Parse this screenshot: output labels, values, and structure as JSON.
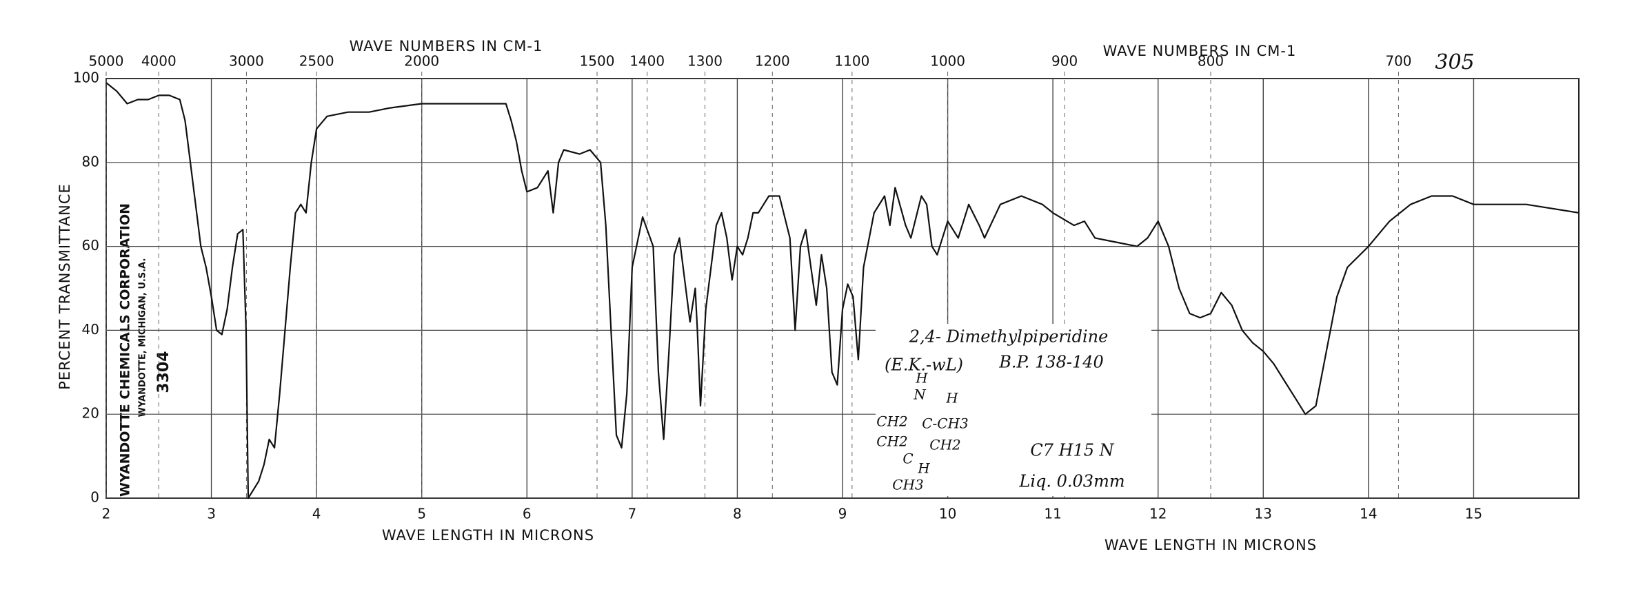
{
  "chart_data": {
    "type": "line",
    "xlabel": "WAVE LENGTH IN MICRONS",
    "x2label": "WAVE NUMBERS IN CM-1",
    "ylabel": "PERCENT TRANSMITTANCE",
    "page_number": "305",
    "company": "WYANDOTTE CHEMICALS CORPORATION",
    "address": "WYANDOTTE, MICHIGAN, U.S.A.",
    "serial": "3304",
    "annotations": [
      "2,4- Dimethylpiperidine",
      "(E.K.-wL)",
      "B.P. 138-140",
      "C7 H15 N",
      "Liq. 0.03mm",
      "H",
      "N",
      "H",
      "CH2",
      "C-CH3",
      "CH2",
      "CH2",
      "C",
      "H",
      "CH3"
    ],
    "xlim": [
      2,
      16
    ],
    "xticks": [
      2,
      3,
      4,
      5,
      6,
      7,
      8,
      9,
      10,
      11,
      12,
      13,
      14,
      15
    ],
    "x2ticks": [
      5000,
      4000,
      3000,
      2500,
      2000,
      1500,
      1400,
      1300,
      1200,
      1100,
      1000,
      900,
      800,
      700
    ],
    "ylim": [
      0,
      100
    ],
    "yticks": [
      0,
      20,
      40,
      60,
      80,
      100
    ],
    "grid": true,
    "color": "#111111",
    "x": [
      2.0,
      2.1,
      2.2,
      2.3,
      2.4,
      2.5,
      2.6,
      2.7,
      2.75,
      2.8,
      2.85,
      2.9,
      2.95,
      3.0,
      3.05,
      3.1,
      3.15,
      3.2,
      3.25,
      3.3,
      3.33,
      3.35,
      3.4,
      3.45,
      3.5,
      3.55,
      3.6,
      3.65,
      3.7,
      3.75,
      3.8,
      3.85,
      3.9,
      3.95,
      4.0,
      4.1,
      4.3,
      4.5,
      4.7,
      5.0,
      5.5,
      5.8,
      5.85,
      5.9,
      5.95,
      6.0,
      6.1,
      6.2,
      6.25,
      6.3,
      6.35,
      6.5,
      6.6,
      6.7,
      6.75,
      6.8,
      6.85,
      6.9,
      6.95,
      7.0,
      7.1,
      7.2,
      7.25,
      7.3,
      7.35,
      7.4,
      7.45,
      7.5,
      7.55,
      7.6,
      7.62,
      7.65,
      7.7,
      7.8,
      7.85,
      7.9,
      7.95,
      8.0,
      8.05,
      8.1,
      8.15,
      8.2,
      8.3,
      8.4,
      8.5,
      8.55,
      8.6,
      8.65,
      8.7,
      8.75,
      8.8,
      8.85,
      8.9,
      8.95,
      9.0,
      9.05,
      9.1,
      9.15,
      9.2,
      9.3,
      9.4,
      9.45,
      9.5,
      9.6,
      9.65,
      9.75,
      9.8,
      9.85,
      9.9,
      10.0,
      10.1,
      10.15,
      10.2,
      10.3,
      10.35,
      10.5,
      10.7,
      10.9,
      11.0,
      11.2,
      11.3,
      11.4,
      11.6,
      11.8,
      11.9,
      12.0,
      12.1,
      12.2,
      12.3,
      12.4,
      12.5,
      12.6,
      12.7,
      12.8,
      12.9,
      13.0,
      13.1,
      13.2,
      13.3,
      13.4,
      13.5,
      13.6,
      13.7,
      13.8,
      14.0,
      14.2,
      14.4,
      14.6,
      14.8,
      15.0,
      15.2,
      15.5,
      16.0
    ],
    "values": [
      99,
      97,
      94,
      95,
      95,
      96,
      96,
      95,
      90,
      80,
      70,
      60,
      55,
      48,
      40,
      39,
      45,
      55,
      63,
      64,
      40,
      0,
      2,
      4,
      8,
      14,
      12,
      25,
      40,
      55,
      68,
      70,
      68,
      80,
      88,
      91,
      92,
      92,
      93,
      94,
      94,
      94,
      90,
      85,
      78,
      73,
      74,
      78,
      68,
      80,
      83,
      82,
      83,
      80,
      65,
      40,
      15,
      12,
      25,
      55,
      67,
      60,
      30,
      14,
      35,
      58,
      62,
      52,
      42,
      50,
      40,
      22,
      45,
      65,
      68,
      62,
      52,
      60,
      58,
      62,
      68,
      68,
      72,
      72,
      62,
      40,
      60,
      64,
      55,
      46,
      58,
      50,
      30,
      27,
      45,
      51,
      48,
      33,
      55,
      68,
      72,
      65,
      74,
      65,
      62,
      72,
      70,
      60,
      58,
      66,
      62,
      66,
      70,
      65,
      62,
      70,
      72,
      70,
      68,
      65,
      66,
      62,
      61,
      60,
      62,
      66,
      60,
      50,
      44,
      43,
      44,
      49,
      46,
      40,
      37,
      35,
      32,
      28,
      24,
      20,
      22,
      35,
      48,
      55,
      60,
      66,
      70,
      72,
      72,
      70,
      70,
      70,
      68
    ]
  }
}
